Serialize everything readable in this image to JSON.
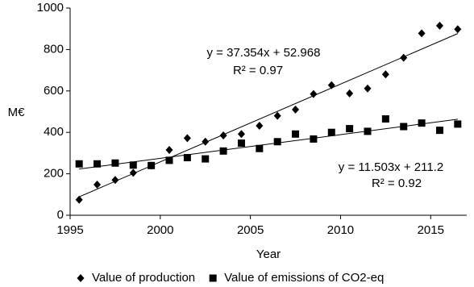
{
  "chart_data": {
    "type": "scatter",
    "x_label": "Year",
    "y_label": "M€",
    "x": [
      1995.5,
      1996.5,
      1997.5,
      1998.5,
      1999.5,
      2000.5,
      2001.5,
      2002.5,
      2003.5,
      2004.5,
      2005.5,
      2006.5,
      2007.5,
      2008.5,
      2009.5,
      2010.5,
      2011.5,
      2012.5,
      2013.5,
      2014.5,
      2015.5,
      2016.5
    ],
    "series": [
      {
        "name": "Value of production",
        "color": "#000000",
        "marker": "diamond",
        "values": [
          75,
          148,
          170,
          205,
          240,
          315,
          372,
          355,
          385,
          392,
          432,
          480,
          510,
          585,
          628,
          588,
          612,
          680,
          760,
          878,
          915,
          898
        ],
        "trend_equation": "y = 37.354x + 52.968",
        "trend_r2": "R² = 0.97"
      },
      {
        "name": "Value of emissions of CO2-eq",
        "color": "#000000",
        "marker": "square",
        "values": [
          248,
          248,
          252,
          242,
          240,
          265,
          278,
          272,
          310,
          348,
          322,
          355,
          392,
          368,
          400,
          418,
          405,
          465,
          428,
          445,
          410,
          440
        ],
        "trend_equation": "y = 11.503x + 211.2",
        "trend_r2": "R² = 0.92"
      }
    ],
    "xlim": [
      1995,
      2017
    ],
    "xticks": [
      1995,
      2000,
      2005,
      2010,
      2015
    ],
    "ylim": [
      0,
      1000
    ],
    "yticks": [
      0,
      200,
      400,
      600,
      800,
      1000
    ],
    "grid": false,
    "legend": "bottom"
  }
}
